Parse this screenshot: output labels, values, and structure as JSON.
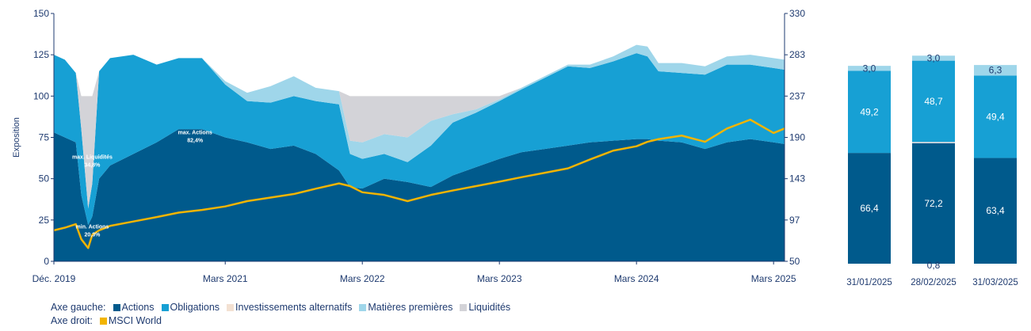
{
  "colors": {
    "actions": "#005a8c",
    "obligations": "#17a0d4",
    "alternatifs": "#f3e1d2",
    "matieres": "#9fd6ea",
    "liquidites": "#d3d3d8",
    "msci": "#f2b400",
    "axis": "#1f3b70"
  },
  "chart_data": [
    {
      "type": "area",
      "ylabel": "Exposition",
      "ylim": [
        0,
        150
      ],
      "yticks": [
        "0",
        "25",
        "50",
        "75",
        "100",
        "125",
        "150"
      ],
      "y2lim": [
        50,
        330
      ],
      "y2ticks": [
        "50",
        "97",
        "143",
        "190",
        "237",
        "283",
        "330"
      ],
      "xlim": [
        2019.92,
        2025.25
      ],
      "xticks": [
        {
          "x": 2019.92,
          "label": "Déc. 2019"
        },
        {
          "x": 2021.17,
          "label": "Mars 2021"
        },
        {
          "x": 2022.17,
          "label": "Mars 2022"
        },
        {
          "x": 2023.17,
          "label": "Mars 2023"
        },
        {
          "x": 2024.17,
          "label": "Mars 2024"
        },
        {
          "x": 2025.17,
          "label": "Mars 2025"
        }
      ],
      "x": [
        2019.92,
        2020.0,
        2020.08,
        2020.12,
        2020.17,
        2020.2,
        2020.25,
        2020.33,
        2020.5,
        2020.67,
        2020.83,
        2021.0,
        2021.17,
        2021.33,
        2021.5,
        2021.67,
        2021.83,
        2022.0,
        2022.08,
        2022.17,
        2022.33,
        2022.5,
        2022.67,
        2022.83,
        2023.0,
        2023.17,
        2023.33,
        2023.5,
        2023.67,
        2023.83,
        2024.0,
        2024.17,
        2024.25,
        2024.33,
        2024.5,
        2024.67,
        2024.83,
        2025.0,
        2025.17,
        2025.25
      ],
      "series": [
        {
          "name": "Actions",
          "axis": "left",
          "values": [
            78,
            75,
            72,
            40,
            22,
            27,
            50,
            58,
            65,
            72,
            80,
            80,
            75,
            72,
            68,
            70,
            65,
            55,
            45,
            44,
            50,
            48,
            45,
            52,
            57,
            62,
            66,
            68,
            70,
            72,
            73,
            74,
            74,
            73,
            72,
            68,
            72,
            74,
            72,
            71
          ]
        },
        {
          "name": "Obligations",
          "axis": "left",
          "values": [
            47,
            47,
            42,
            40,
            10,
            20,
            65,
            65,
            60,
            47,
            43,
            43,
            32,
            25,
            28,
            30,
            32,
            40,
            20,
            18,
            15,
            12,
            25,
            32,
            33,
            35,
            38,
            43,
            48,
            45,
            48,
            52,
            50,
            42,
            42,
            45,
            47,
            45,
            45,
            45
          ]
        },
        {
          "name": "Investissements alternatifs",
          "axis": "left",
          "values": [
            0,
            0,
            0,
            0,
            0,
            0,
            0,
            0,
            0,
            0,
            0,
            0,
            0,
            0,
            0,
            0,
            0,
            0,
            0,
            0,
            0,
            0,
            0,
            0,
            0,
            0,
            0,
            0,
            0,
            0,
            0,
            0,
            0,
            0,
            0,
            0,
            0,
            0,
            0,
            0
          ]
        },
        {
          "name": "Matières premières",
          "axis": "left",
          "values": [
            0,
            0,
            0,
            0,
            0,
            0,
            0,
            0,
            0,
            0,
            0,
            0,
            2,
            5,
            10,
            12,
            8,
            8,
            8,
            10,
            12,
            15,
            15,
            5,
            2,
            1,
            1,
            1,
            1,
            2,
            3,
            5,
            6,
            5,
            6,
            5,
            5,
            6,
            6,
            6
          ]
        },
        {
          "name": "Liquidités",
          "axis": "left",
          "values": [
            0,
            0,
            0,
            20,
            68,
            53,
            0,
            0,
            0,
            0,
            0,
            0,
            0,
            0,
            0,
            0,
            0,
            0,
            27,
            28,
            23,
            25,
            15,
            11,
            8,
            2,
            0,
            0,
            0,
            0,
            0,
            0,
            0,
            0,
            0,
            0,
            0,
            0,
            0,
            0
          ]
        },
        {
          "name": "MSCI World",
          "axis": "right",
          "values": [
            85,
            88,
            92,
            75,
            65,
            80,
            85,
            90,
            95,
            100,
            105,
            108,
            112,
            118,
            122,
            126,
            132,
            138,
            135,
            128,
            125,
            118,
            125,
            130,
            135,
            140,
            145,
            150,
            155,
            165,
            175,
            180,
            185,
            188,
            192,
            185,
            200,
            210,
            195,
            200
          ]
        }
      ],
      "annotations": [
        {
          "text": "max. Liquidités",
          "value": "34,8%",
          "x": 2020.2,
          "y": 62
        },
        {
          "text": "max. Actions",
          "value": "82,4%",
          "x": 2020.95,
          "y": 77
        },
        {
          "text": "min. Actions",
          "value": "20,3%",
          "x": 2020.2,
          "y": 20
        }
      ]
    },
    {
      "type": "bar",
      "stacked": true,
      "categories": [
        "31/01/2025",
        "28/02/2025",
        "31/03/2025"
      ],
      "series": [
        {
          "name": "Actions",
          "values": [
            66.4,
            72.2,
            63.4
          ],
          "labels": [
            "66,4",
            "72,2",
            "63,4"
          ]
        },
        {
          "name": "Liquidités",
          "values": [
            0,
            0.8,
            0
          ],
          "labels": [
            "",
            "0,8",
            ""
          ]
        },
        {
          "name": "Obligations",
          "values": [
            49.2,
            48.7,
            49.4
          ],
          "labels": [
            "49,2",
            "48,7",
            "49,4"
          ]
        },
        {
          "name": "Matières premières",
          "values": [
            3.0,
            3.0,
            6.3
          ],
          "labels": [
            "3,0",
            "3,0",
            "6,3"
          ]
        }
      ],
      "ylim": [
        0,
        150
      ]
    }
  ],
  "legend": {
    "left_label": "Axe gauche:",
    "right_label": "Axe droit:",
    "left_items": [
      "Actions",
      "Obligations",
      "Investissements alternatifs",
      "Matières premières",
      "Liquidités"
    ],
    "right_items": [
      "MSCI World"
    ]
  }
}
